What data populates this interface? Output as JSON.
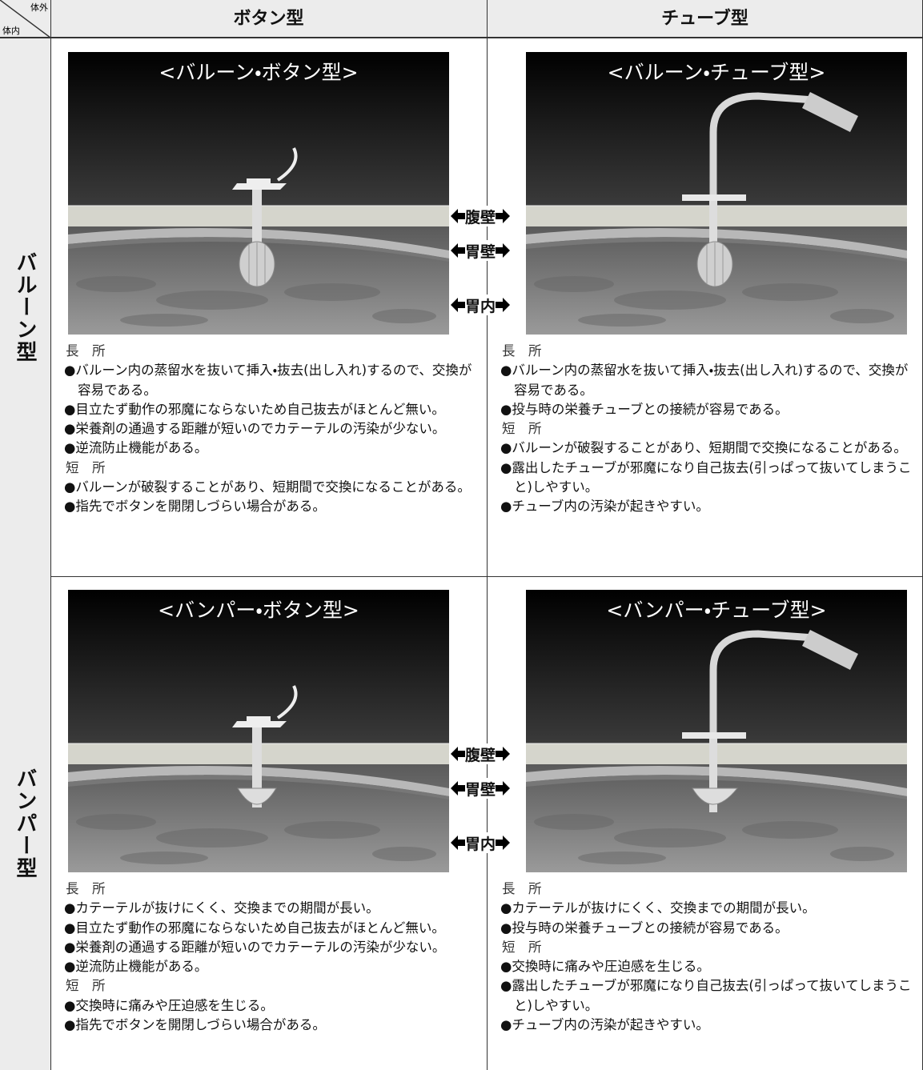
{
  "corner": {
    "top": "体外",
    "bottom": "体内"
  },
  "columns": [
    "ボタン型",
    "チューブ型"
  ],
  "rows": [
    {
      "label": "バルーン型",
      "layers": [
        "腹壁",
        "胃壁",
        "胃内"
      ],
      "cells": [
        {
          "title": "<バルーン・ボタン型>",
          "pros_heading": "長　所",
          "pros": [
            "●バルーン内の蒸留水を抜いて挿入・抜去(出し入れ)するので、交換が容易である。",
            "●目立たず動作の邪魔にならないため自己抜去がほとんど無い。",
            "●栄養剤の通過する距離が短いのでカテーテルの汚染が少ない。",
            "●逆流防止機能がある。"
          ],
          "cons_heading": "短　所",
          "cons": [
            "●バルーンが破裂することがあり、短期間で交換になることがある。",
            "●指先でボタンを開閉しづらい場合がある。"
          ]
        },
        {
          "title": "<バルーン・チューブ型>",
          "pros_heading": "長　所",
          "pros": [
            "●バルーン内の蒸留水を抜いて挿入・抜去(出し入れ)するので、交換が容易である。",
            "●投与時の栄養チューブとの接続が容易である。"
          ],
          "cons_heading": "短　所",
          "cons": [
            "●バルーンが破裂することがあり、短期間で交換になることがある。",
            "●露出したチューブが邪魔になり自己抜去(引っぱって抜いてしまうこと)しやすい。",
            "●チューブ内の汚染が起きやすい。"
          ]
        }
      ]
    },
    {
      "label": "バンパー型",
      "layers": [
        "腹壁",
        "胃壁",
        "胃内"
      ],
      "cells": [
        {
          "title": "<バンパー・ボタン型>",
          "pros_heading": "長　所",
          "pros": [
            "●カテーテルが抜けにくく、交換までの期間が長い。",
            "●目立たず動作の邪魔にならないため自己抜去がほとんど無い。",
            "●栄養剤の通過する距離が短いのでカテーテルの汚染が少ない。",
            "●逆流防止機能がある。"
          ],
          "cons_heading": "短　所",
          "cons": [
            "●交換時に痛みや圧迫感を生じる。",
            "●指先でボタンを開閉しづらい場合がある。"
          ]
        },
        {
          "title": "<バンパー・チューブ型>",
          "pros_heading": "長　所",
          "pros": [
            "●カテーテルが抜けにくく、交換までの期間が長い。",
            "●投与時の栄養チューブとの接続が容易である。"
          ],
          "cons_heading": "短　所",
          "cons": [
            "●交換時に痛みや圧迫感を生じる。",
            "●露出したチューブが邪魔になり自己抜去(引っぱって抜いてしまうこと)しやすい。",
            "●チューブ内の汚染が起きやすい。"
          ]
        }
      ]
    }
  ]
}
